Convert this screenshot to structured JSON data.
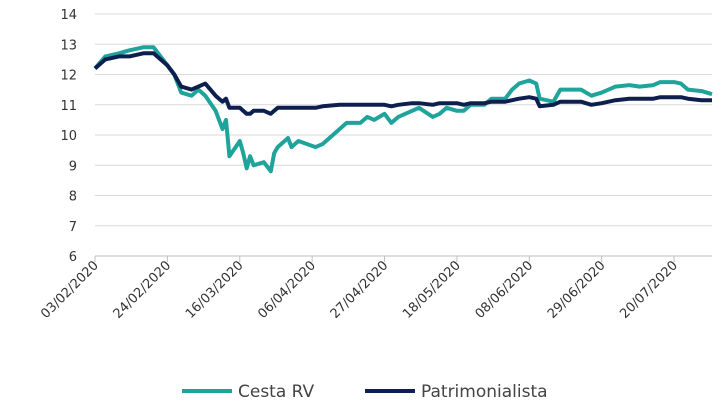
{
  "chart_data": {
    "type": "line",
    "x": [
      "03/02/2020",
      "06/02/2020",
      "10/02/2020",
      "13/02/2020",
      "17/02/2020",
      "20/02/2020",
      "24/02/2020",
      "26/02/2020",
      "28/02/2020",
      "02/03/2020",
      "04/03/2020",
      "06/03/2020",
      "09/03/2020",
      "11/03/2020",
      "12/03/2020",
      "13/03/2020",
      "16/03/2020",
      "17/03/2020",
      "18/03/2020",
      "19/03/2020",
      "20/03/2020",
      "23/03/2020",
      "25/03/2020",
      "26/03/2020",
      "27/03/2020",
      "30/03/2020",
      "31/03/2020",
      "02/04/2020",
      "07/04/2020",
      "09/04/2020",
      "14/04/2020",
      "16/04/2020",
      "20/04/2020",
      "22/04/2020",
      "24/04/2020",
      "27/04/2020",
      "29/04/2020",
      "01/05/2020",
      "05/05/2020",
      "07/05/2020",
      "11/05/2020",
      "13/05/2020",
      "15/05/2020",
      "18/05/2020",
      "20/05/2020",
      "22/05/2020",
      "26/05/2020",
      "28/05/2020",
      "01/06/2020",
      "03/06/2020",
      "05/06/2020",
      "08/06/2020",
      "10/06/2020",
      "11/06/2020",
      "15/06/2020",
      "17/06/2020",
      "19/06/2020",
      "23/06/2020",
      "26/06/2020",
      "29/06/2020",
      "01/07/2020",
      "03/07/2020",
      "07/07/2020",
      "10/07/2020",
      "14/07/2020",
      "16/07/2020",
      "20/07/2020",
      "22/07/2020",
      "24/07/2020",
      "28/07/2020",
      "31/07/2020"
    ],
    "series": [
      {
        "name": "Cesta RV",
        "color": "#1fa39b",
        "values": [
          12.2,
          12.6,
          12.7,
          12.8,
          12.9,
          12.9,
          12.3,
          12.0,
          11.4,
          11.3,
          11.5,
          11.3,
          10.8,
          10.2,
          10.5,
          9.3,
          9.8,
          9.4,
          8.9,
          9.3,
          9.0,
          9.1,
          8.8,
          9.4,
          9.6,
          9.9,
          9.6,
          9.8,
          9.6,
          9.7,
          10.2,
          10.4,
          10.4,
          10.6,
          10.5,
          10.7,
          10.4,
          10.6,
          10.8,
          10.9,
          10.6,
          10.7,
          10.9,
          10.8,
          10.8,
          11.0,
          11.0,
          11.2,
          11.2,
          11.5,
          11.7,
          11.8,
          11.7,
          11.2,
          11.1,
          11.5,
          11.5,
          11.5,
          11.3,
          11.4,
          11.5,
          11.6,
          11.65,
          11.6,
          11.65,
          11.75,
          11.75,
          11.7,
          11.5,
          11.45,
          11.35
        ]
      },
      {
        "name": "Patrimonialista",
        "color": "#0d1f4f",
        "values": [
          12.2,
          12.5,
          12.6,
          12.6,
          12.7,
          12.7,
          12.3,
          12.0,
          11.6,
          11.5,
          11.6,
          11.7,
          11.3,
          11.1,
          11.2,
          10.9,
          10.9,
          10.8,
          10.7,
          10.7,
          10.8,
          10.8,
          10.7,
          10.8,
          10.9,
          10.9,
          10.9,
          10.9,
          10.9,
          10.95,
          11.0,
          11.0,
          11.0,
          11.0,
          11.0,
          11.0,
          10.95,
          11.0,
          11.05,
          11.05,
          11.0,
          11.05,
          11.05,
          11.05,
          11.0,
          11.05,
          11.05,
          11.1,
          11.1,
          11.15,
          11.2,
          11.25,
          11.2,
          10.95,
          11.0,
          11.1,
          11.1,
          11.1,
          11.0,
          11.05,
          11.1,
          11.15,
          11.2,
          11.2,
          11.2,
          11.25,
          11.25,
          11.25,
          11.2,
          11.15,
          11.15
        ]
      }
    ],
    "xlim": [
      "03/02/2020",
      "31/07/2020"
    ],
    "xticks": [
      "03/02/2020",
      "24/02/2020",
      "16/03/2020",
      "06/04/2020",
      "27/04/2020",
      "18/05/2020",
      "08/06/2020",
      "29/06/2020",
      "20/07/2020"
    ],
    "ylim": [
      6,
      14
    ],
    "yticks": [
      6,
      7,
      8,
      9,
      10,
      11,
      12,
      13,
      14
    ],
    "grid": true,
    "legend": "bottom"
  }
}
